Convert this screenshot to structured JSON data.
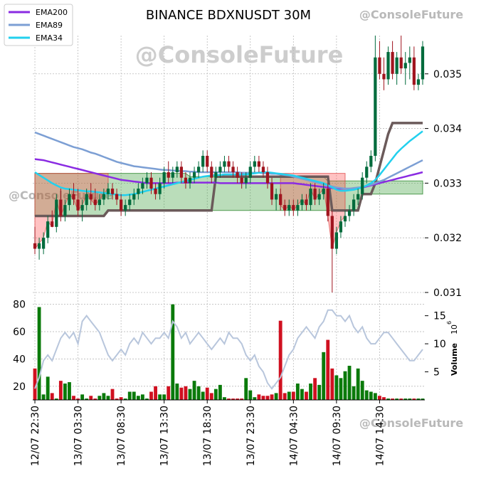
{
  "chart_data": {
    "type": "candlestick",
    "title": "BINANCE BDXNUSDT 30M",
    "watermark": "@ConsoleFuture",
    "legend": {
      "placement": "top-left",
      "entries": [
        {
          "name": "EMA200",
          "color": "#8a2be2"
        },
        {
          "name": "EMA89",
          "color": "#7c9fd4"
        },
        {
          "name": "EMA34",
          "color": "#22d0ee"
        }
      ]
    },
    "price_axis": {
      "ylim": [
        0.031,
        0.0357
      ],
      "ticks": [
        "0.031",
        "0.032",
        "0.033",
        "0.034",
        "0.035"
      ],
      "side": "right"
    },
    "volume_axis": {
      "left_ylim": [
        10,
        84
      ],
      "left_ticks": [
        "20",
        "40",
        "60",
        "80"
      ],
      "right_ticks": [
        "5",
        "10",
        "15"
      ],
      "label": "Volume",
      "exponent": "10",
      "exponent_power": "6"
    },
    "x_ticks": [
      "12/07 22:30",
      "13/07 03:30",
      "13/07 08:30",
      "13/07 13:30",
      "13/07 18:30",
      "13/07 23:30",
      "14/07 04:30",
      "14/07 09:30",
      "14/07 14:30"
    ],
    "x_tick_index": [
      0,
      10,
      20,
      30,
      40,
      50,
      60,
      70,
      80
    ],
    "candles": [
      [
        0.0319,
        0.0322,
        0.0317,
        0.0318
      ],
      [
        0.0318,
        0.032,
        0.0316,
        0.0319
      ],
      [
        0.0318,
        0.0321,
        0.0317,
        0.032
      ],
      [
        0.032,
        0.0324,
        0.0319,
        0.0323
      ],
      [
        0.0323,
        0.0325,
        0.0322,
        0.0322
      ],
      [
        0.0322,
        0.0328,
        0.0321,
        0.0327
      ],
      [
        0.0327,
        0.0329,
        0.0323,
        0.0324
      ],
      [
        0.0324,
        0.0327,
        0.0323,
        0.0326
      ],
      [
        0.0326,
        0.0329,
        0.0325,
        0.0328
      ],
      [
        0.0328,
        0.033,
        0.0326,
        0.0327
      ],
      [
        0.0327,
        0.0329,
        0.0324,
        0.0325
      ],
      [
        0.0325,
        0.0327,
        0.0323,
        0.0326
      ],
      [
        0.0326,
        0.0329,
        0.0325,
        0.0328
      ],
      [
        0.0328,
        0.033,
        0.0326,
        0.0327
      ],
      [
        0.0327,
        0.0329,
        0.0325,
        0.0326
      ],
      [
        0.0326,
        0.0328,
        0.0325,
        0.0327
      ],
      [
        0.0327,
        0.0329,
        0.0326,
        0.0328
      ],
      [
        0.0328,
        0.033,
        0.0327,
        0.0329
      ],
      [
        0.0329,
        0.033,
        0.0327,
        0.0328
      ],
      [
        0.0328,
        0.0329,
        0.0326,
        0.0327
      ],
      [
        0.0327,
        0.0328,
        0.0324,
        0.0325
      ],
      [
        0.0325,
        0.0327,
        0.0324,
        0.0326
      ],
      [
        0.0326,
        0.0328,
        0.0325,
        0.0327
      ],
      [
        0.0327,
        0.0329,
        0.0326,
        0.0328
      ],
      [
        0.0328,
        0.033,
        0.0327,
        0.0329
      ],
      [
        0.0329,
        0.0331,
        0.0328,
        0.033
      ],
      [
        0.033,
        0.0332,
        0.0329,
        0.0331
      ],
      [
        0.0331,
        0.0332,
        0.0328,
        0.0329
      ],
      [
        0.0329,
        0.033,
        0.0327,
        0.0328
      ],
      [
        0.0328,
        0.0331,
        0.0327,
        0.033
      ],
      [
        0.033,
        0.0333,
        0.0329,
        0.0332
      ],
      [
        0.0332,
        0.0334,
        0.033,
        0.0331
      ],
      [
        0.0331,
        0.0333,
        0.033,
        0.0332
      ],
      [
        0.0332,
        0.0334,
        0.0331,
        0.0333
      ],
      [
        0.0333,
        0.0334,
        0.033,
        0.0331
      ],
      [
        0.0331,
        0.0332,
        0.0329,
        0.033
      ],
      [
        0.033,
        0.0332,
        0.0329,
        0.0331
      ],
      [
        0.0331,
        0.0333,
        0.033,
        0.0332
      ],
      [
        0.0332,
        0.0334,
        0.0331,
        0.0333
      ],
      [
        0.0333,
        0.0336,
        0.0332,
        0.0335
      ],
      [
        0.0335,
        0.0336,
        0.0332,
        0.0333
      ],
      [
        0.0333,
        0.0334,
        0.033,
        0.0331
      ],
      [
        0.0331,
        0.0333,
        0.033,
        0.0332
      ],
      [
        0.0332,
        0.0334,
        0.0331,
        0.0333
      ],
      [
        0.0333,
        0.0335,
        0.0332,
        0.0334
      ],
      [
        0.0334,
        0.0335,
        0.0332,
        0.0333
      ],
      [
        0.0333,
        0.0334,
        0.0331,
        0.0332
      ],
      [
        0.0332,
        0.0333,
        0.033,
        0.0331
      ],
      [
        0.0331,
        0.0332,
        0.0329,
        0.033
      ],
      [
        0.033,
        0.0332,
        0.0329,
        0.0331
      ],
      [
        0.0331,
        0.0334,
        0.033,
        0.0333
      ],
      [
        0.0333,
        0.0335,
        0.0332,
        0.0334
      ],
      [
        0.0334,
        0.0335,
        0.0332,
        0.0333
      ],
      [
        0.0333,
        0.0334,
        0.0331,
        0.0332
      ],
      [
        0.0332,
        0.0333,
        0.0329,
        0.033
      ],
      [
        0.033,
        0.0331,
        0.0326,
        0.0327
      ],
      [
        0.0327,
        0.0329,
        0.0325,
        0.0328
      ],
      [
        0.0328,
        0.0329,
        0.0325,
        0.0326
      ],
      [
        0.0326,
        0.0327,
        0.0324,
        0.0325
      ],
      [
        0.0325,
        0.0327,
        0.0324,
        0.0326
      ],
      [
        0.0326,
        0.0327,
        0.0324,
        0.0325
      ],
      [
        0.0325,
        0.0327,
        0.0324,
        0.0326
      ],
      [
        0.0326,
        0.0328,
        0.0325,
        0.0327
      ],
      [
        0.0327,
        0.0328,
        0.0325,
        0.0326
      ],
      [
        0.0326,
        0.033,
        0.0325,
        0.0329
      ],
      [
        0.0329,
        0.033,
        0.0326,
        0.0327
      ],
      [
        0.0327,
        0.0329,
        0.0326,
        0.0328
      ],
      [
        0.0328,
        0.033,
        0.0327,
        0.0329
      ],
      [
        0.0329,
        0.033,
        0.0323,
        0.0324
      ],
      [
        0.0324,
        0.0325,
        0.031,
        0.0318
      ],
      [
        0.0318,
        0.0322,
        0.0317,
        0.0321
      ],
      [
        0.0321,
        0.0324,
        0.032,
        0.0323
      ],
      [
        0.0323,
        0.0325,
        0.0322,
        0.0324
      ],
      [
        0.0324,
        0.0326,
        0.0323,
        0.0325
      ],
      [
        0.0325,
        0.0328,
        0.0324,
        0.0327
      ],
      [
        0.0327,
        0.0329,
        0.0326,
        0.0328
      ],
      [
        0.0328,
        0.0332,
        0.0327,
        0.0331
      ],
      [
        0.0331,
        0.0334,
        0.033,
        0.0333
      ],
      [
        0.0333,
        0.0336,
        0.0332,
        0.0335
      ],
      [
        0.0335,
        0.0357,
        0.0334,
        0.0353
      ],
      [
        0.0353,
        0.0356,
        0.0349,
        0.035
      ],
      [
        0.035,
        0.0353,
        0.0347,
        0.0349
      ],
      [
        0.0349,
        0.0355,
        0.0348,
        0.0354
      ],
      [
        0.0354,
        0.0356,
        0.0349,
        0.035
      ],
      [
        0.035,
        0.0354,
        0.0348,
        0.0353
      ],
      [
        0.0353,
        0.0357,
        0.035,
        0.0351
      ],
      [
        0.0351,
        0.0354,
        0.0348,
        0.0352
      ],
      [
        0.0352,
        0.0355,
        0.0349,
        0.0353
      ],
      [
        0.0353,
        0.0355,
        0.0347,
        0.0348
      ],
      [
        0.0348,
        0.035,
        0.0347,
        0.0349
      ],
      [
        0.0349,
        0.0356,
        0.0348,
        0.0355
      ]
    ],
    "ema200": [
      0.03344,
      0.03343,
      0.03342,
      0.0334,
      0.03338,
      0.03336,
      0.03334,
      0.03332,
      0.0333,
      0.03328,
      0.03326,
      0.03324,
      0.03322,
      0.0332,
      0.03318,
      0.03316,
      0.03314,
      0.03312,
      0.0331,
      0.03308,
      0.03306,
      0.03305,
      0.03304,
      0.03303,
      0.03302,
      0.03301,
      0.033,
      0.033,
      0.033,
      0.033,
      0.033,
      0.033,
      0.033,
      0.03301,
      0.03301,
      0.03301,
      0.03301,
      0.03301,
      0.03301,
      0.03301,
      0.03301,
      0.03301,
      0.03301,
      0.033,
      0.033,
      0.033,
      0.033,
      0.033,
      0.033,
      0.033,
      0.033,
      0.033,
      0.033,
      0.033,
      0.033,
      0.033,
      0.033,
      0.033,
      0.033,
      0.033,
      0.033,
      0.03299,
      0.03298,
      0.03297,
      0.03296,
      0.03295,
      0.03294,
      0.03293,
      0.03292,
      0.03291,
      0.0329,
      0.0329,
      0.0329,
      0.0329,
      0.0329,
      0.03291,
      0.03292,
      0.03294,
      0.03296,
      0.03298,
      0.033,
      0.03302,
      0.03304,
      0.03306,
      0.03308,
      0.0331,
      0.03312,
      0.03314,
      0.03316,
      0.03318,
      0.0332
    ],
    "ema89": [
      0.03393,
      0.0339,
      0.03387,
      0.03384,
      0.03381,
      0.03378,
      0.03375,
      0.03372,
      0.03369,
      0.03366,
      0.03364,
      0.03362,
      0.03359,
      0.03356,
      0.03354,
      0.03351,
      0.03348,
      0.03345,
      0.03342,
      0.03339,
      0.03337,
      0.03335,
      0.03333,
      0.03331,
      0.0333,
      0.03329,
      0.03328,
      0.03327,
      0.03326,
      0.03325,
      0.03324,
      0.03324,
      0.03323,
      0.03323,
      0.03322,
      0.03322,
      0.03321,
      0.03321,
      0.0332,
      0.0332,
      0.0332,
      0.0332,
      0.0332,
      0.0332,
      0.0332,
      0.0332,
      0.0332,
      0.0332,
      0.03319,
      0.03319,
      0.03319,
      0.03319,
      0.03319,
      0.03318,
      0.03318,
      0.03317,
      0.03317,
      0.03316,
      0.03315,
      0.03314,
      0.03312,
      0.0331,
      0.03308,
      0.03306,
      0.03304,
      0.03302,
      0.033,
      0.03298,
      0.03296,
      0.03294,
      0.03292,
      0.03291,
      0.0329,
      0.0329,
      0.03291,
      0.03292,
      0.03293,
      0.03295,
      0.03297,
      0.033,
      0.03303,
      0.03306,
      0.0331,
      0.03314,
      0.03318,
      0.03322,
      0.03326,
      0.0333,
      0.03334,
      0.03338,
      0.03342
    ],
    "ema34": [
      0.0332,
      0.03315,
      0.0331,
      0.03305,
      0.033,
      0.03296,
      0.03292,
      0.0329,
      0.03289,
      0.03288,
      0.03287,
      0.03286,
      0.03285,
      0.03285,
      0.03284,
      0.03283,
      0.03282,
      0.03281,
      0.0328,
      0.03279,
      0.03278,
      0.03278,
      0.03279,
      0.0328,
      0.03282,
      0.03284,
      0.03286,
      0.03288,
      0.0329,
      0.03292,
      0.03294,
      0.03296,
      0.03298,
      0.033,
      0.03302,
      0.03304,
      0.03306,
      0.03308,
      0.0331,
      0.03312,
      0.03313,
      0.03314,
      0.03315,
      0.03315,
      0.03316,
      0.03316,
      0.03316,
      0.03316,
      0.03316,
      0.03316,
      0.03317,
      0.03318,
      0.03319,
      0.0332,
      0.0332,
      0.03319,
      0.03318,
      0.03317,
      0.03316,
      0.03315,
      0.03314,
      0.03312,
      0.0331,
      0.03308,
      0.03306,
      0.03304,
      0.03302,
      0.033,
      0.03296,
      0.03292,
      0.03288,
      0.03286,
      0.03286,
      0.03287,
      0.03288,
      0.0329,
      0.03292,
      0.03296,
      0.033,
      0.03306,
      0.03315,
      0.03325,
      0.03335,
      0.03345,
      0.03355,
      0.03363,
      0.0337,
      0.03377,
      0.03383,
      0.03389,
      0.03395
    ],
    "cloud_top": [
      0.03318,
      0.03318,
      0.03318,
      0.03318,
      0.03318,
      0.03318,
      0.03318,
      0.03318,
      0.03318,
      0.03318,
      0.03318,
      0.03318,
      0.03318,
      0.03318,
      0.03318,
      0.03318,
      0.03318,
      0.03318,
      0.03318,
      0.03318,
      0.03318,
      0.03318,
      0.03318,
      0.03318,
      0.03318,
      0.03318,
      0.03318,
      0.03318,
      0.03318,
      0.03318,
      0.03318,
      0.03318,
      0.03318,
      0.03318,
      0.03318,
      0.03318,
      0.03312,
      0.03312,
      0.03312,
      0.03312,
      0.03312,
      0.03312,
      0.03312,
      0.03312,
      0.03312,
      0.03312,
      0.03312,
      0.03312,
      0.03312,
      0.03312,
      0.03312,
      0.03312,
      0.03312,
      0.03312,
      0.03312,
      0.03312,
      0.03312,
      0.03312,
      0.03312,
      0.03312,
      0.03312,
      0.03312,
      0.03312,
      0.03312,
      0.03312,
      0.03312,
      0.03312,
      0.03312,
      0.03304,
      0.03304,
      0.03304,
      0.03304,
      0.03304,
      0.03304,
      0.03304,
      0.03304,
      0.03304,
      0.03304,
      0.03304,
      0.03304,
      0.03304,
      0.03304,
      0.03304,
      0.03304,
      0.03304,
      0.03304,
      0.03304,
      0.03304,
      0.03304,
      0.03304,
      0.03304
    ],
    "cloud_bottom": [
      0.0324,
      0.0324,
      0.0324,
      0.0324,
      0.0324,
      0.0324,
      0.0324,
      0.0324,
      0.0324,
      0.0324,
      0.0324,
      0.0324,
      0.0324,
      0.0324,
      0.0324,
      0.0324,
      0.0324,
      0.0325,
      0.0325,
      0.0325,
      0.0325,
      0.0325,
      0.0325,
      0.0325,
      0.0325,
      0.0325,
      0.0325,
      0.0325,
      0.0325,
      0.0325,
      0.0325,
      0.0325,
      0.0325,
      0.0325,
      0.0325,
      0.0325,
      0.0325,
      0.0325,
      0.0325,
      0.0325,
      0.0325,
      0.0325,
      0.0325,
      0.0325,
      0.0325,
      0.0325,
      0.0325,
      0.0325,
      0.0325,
      0.0325,
      0.0325,
      0.0325,
      0.0325,
      0.0325,
      0.0325,
      0.0325,
      0.0325,
      0.0325,
      0.0325,
      0.0325,
      0.0325,
      0.0325,
      0.0325,
      0.0325,
      0.0325,
      0.0325,
      0.0325,
      0.0325,
      0.0325,
      0.0325,
      0.0325,
      0.0325,
      0.0325,
      0.0325,
      0.0325,
      0.0325,
      0.0328,
      0.0328,
      0.0328,
      0.0328,
      0.0328,
      0.0328,
      0.0328,
      0.0328,
      0.0328,
      0.0328,
      0.0328,
      0.0328,
      0.0328,
      0.0328,
      0.0328
    ],
    "stop_line": [
      0.0324,
      0.0324,
      0.0324,
      0.0324,
      0.0324,
      0.0324,
      0.0324,
      0.0324,
      0.0324,
      0.0324,
      0.0324,
      0.0324,
      0.0324,
      0.0324,
      0.0324,
      0.0324,
      0.0324,
      0.0325,
      0.0325,
      0.0325,
      0.0325,
      0.0325,
      0.0325,
      0.0325,
      0.0325,
      0.0325,
      0.0325,
      0.0325,
      0.0325,
      0.0325,
      0.0325,
      0.0325,
      0.0325,
      0.0325,
      0.0325,
      0.0325,
      0.0325,
      0.0325,
      0.0325,
      0.0325,
      0.0325,
      0.0325,
      0.03312,
      0.03312,
      0.03312,
      0.03312,
      0.03312,
      0.03312,
      0.03312,
      0.03312,
      0.03312,
      0.03312,
      0.03312,
      0.03312,
      0.03312,
      0.03312,
      0.03312,
      0.03312,
      0.03312,
      0.03312,
      0.03312,
      0.03312,
      0.03312,
      0.03312,
      0.03312,
      0.03312,
      0.03312,
      0.03312,
      0.03312,
      0.0325,
      0.0325,
      0.0325,
      0.0325,
      0.0325,
      0.0325,
      0.0325,
      0.0328,
      0.0328,
      0.0328,
      0.033,
      0.0333,
      0.0336,
      0.0339,
      0.0341,
      0.0341,
      0.0341,
      0.0341,
      0.0341,
      0.0341,
      0.0341,
      0.0341
    ],
    "volume_bars": [
      33,
      78,
      14,
      27,
      15,
      11,
      24,
      22,
      23,
      13,
      11,
      14,
      11,
      13,
      11,
      13,
      15,
      13,
      18,
      11,
      12,
      11,
      16,
      16,
      13,
      14,
      11,
      16,
      20,
      14,
      14,
      20,
      80,
      22,
      19,
      20,
      18,
      24,
      20,
      16,
      19,
      15,
      18,
      21,
      12,
      11,
      11,
      11,
      11,
      26,
      17,
      12,
      14,
      13,
      13,
      14,
      15,
      68,
      15,
      16,
      16,
      22,
      18,
      16,
      22,
      26,
      21,
      45,
      54,
      33,
      28,
      26,
      31,
      35,
      20,
      33,
      24,
      17,
      16,
      15,
      13,
      12,
      11,
      11,
      11,
      11,
      11,
      11,
      11,
      11,
      11
    ],
    "volume_line": [
      2,
      4,
      7,
      8,
      7,
      9,
      11,
      12,
      11,
      12,
      10,
      14,
      15,
      14,
      13,
      12,
      10,
      8,
      7,
      8,
      9,
      8,
      10,
      11,
      10,
      12,
      11,
      10,
      11,
      11,
      12,
      11,
      14,
      13,
      11,
      12,
      10,
      11,
      12,
      11,
      10,
      9,
      10,
      11,
      10,
      12,
      11,
      11,
      10,
      8,
      7,
      8,
      6,
      5,
      3,
      2,
      3,
      4,
      6,
      8,
      9,
      11,
      12,
      13,
      12,
      11,
      13,
      14,
      16,
      16,
      15,
      15,
      14,
      15,
      13,
      12,
      13,
      11,
      10,
      10,
      11,
      12,
      12,
      11,
      10,
      9,
      8,
      7,
      7,
      8,
      9
    ]
  }
}
